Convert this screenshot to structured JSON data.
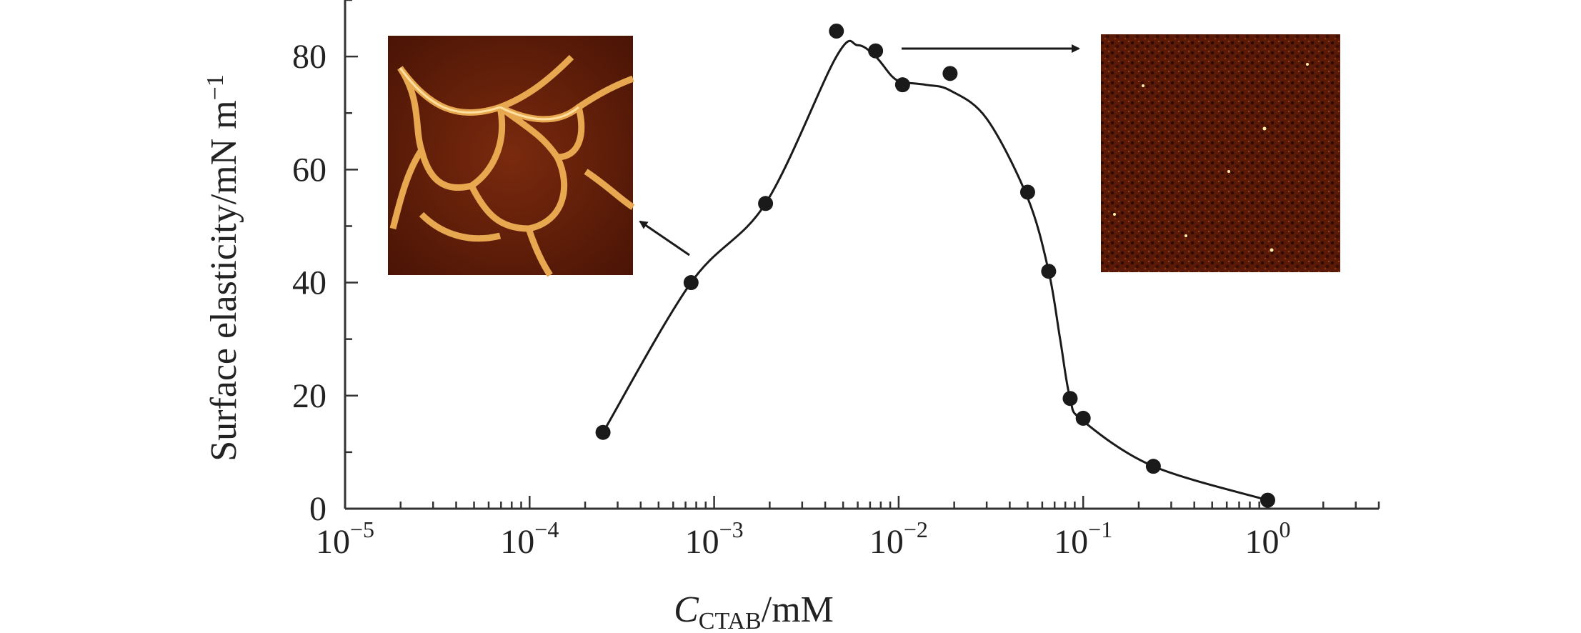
{
  "chart_data": {
    "type": "scatter",
    "x_scale": "log",
    "x": [
      0.00025,
      0.00075,
      0.0019,
      0.0046,
      0.0075,
      0.0105,
      0.019,
      0.05,
      0.065,
      0.085,
      0.1,
      0.24,
      1.0
    ],
    "y": [
      13.5,
      40,
      54,
      84.5,
      81,
      75,
      77,
      56,
      42,
      19.5,
      16,
      7.5,
      1.5
    ],
    "fit_curve": {
      "x": [
        0.00025,
        0.00075,
        0.0019,
        0.0046,
        0.006,
        0.0075,
        0.0092,
        0.0105,
        0.014,
        0.019,
        0.03,
        0.05,
        0.065,
        0.075,
        0.085,
        0.1,
        0.24,
        1.0
      ],
      "y": [
        13.5,
        40,
        54,
        80,
        82,
        80,
        76.5,
        75.5,
        75,
        74,
        69,
        55,
        42,
        30,
        19.5,
        15.5,
        7.5,
        1.5
      ]
    },
    "xlim": [
      1e-05,
      4.0
    ],
    "ylim": [
      0,
      90
    ],
    "x_ticks": [
      {
        "value": 1e-05,
        "base": "10",
        "exp": "−5"
      },
      {
        "value": 0.0001,
        "base": "10",
        "exp": "−4"
      },
      {
        "value": 0.001,
        "base": "10",
        "exp": "−3"
      },
      {
        "value": 0.01,
        "base": "10",
        "exp": "−2"
      },
      {
        "value": 0.1,
        "base": "10",
        "exp": "−1"
      },
      {
        "value": 1,
        "base": "10",
        "exp": "0"
      }
    ],
    "y_ticks": [
      0,
      20,
      40,
      60,
      80
    ],
    "xlabel": {
      "main": "C",
      "sub": "CTAB",
      "unit": "/mM"
    },
    "ylabel": "Surface elasticity/mN m",
    "ylabel_sup": "−1",
    "grid": false,
    "colors": {
      "points": "#1a1a1a",
      "curve": "#1a1a1a",
      "axes": "#333333"
    }
  },
  "insets": [
    {
      "name": "inset-afm-network",
      "description_icon": "afm-network-image-icon"
    },
    {
      "name": "inset-afm-dense",
      "description_icon": "afm-dense-image-icon"
    }
  ]
}
